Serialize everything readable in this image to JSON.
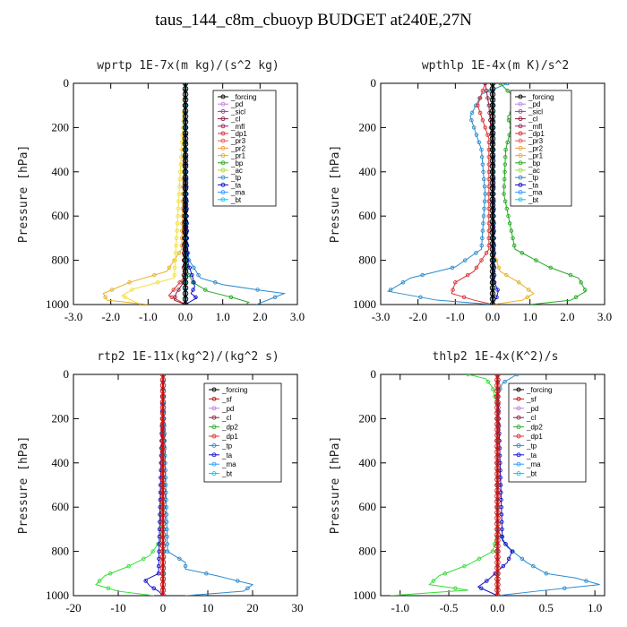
{
  "title": "taus_144_c8m_cbuoyp  BUDGET at240E,27N",
  "chart_data": [
    {
      "type": "line",
      "title": "wprtp  1E-7x(m kg)/(s^2 kg)",
      "ylabel": "Pressure [hPa]",
      "xlim": [
        -3.0,
        3.0
      ],
      "ylim": [
        0,
        1000
      ],
      "xticks": [
        "-3.0",
        "-2.0",
        "-1.0",
        "0.0",
        "1.0",
        "2.0",
        "3.0"
      ],
      "yticks": [
        "0",
        "200",
        "400",
        "600",
        "800",
        "1000"
      ],
      "legend": [
        "_forcing",
        "_pd",
        "_sicl",
        "_cl",
        "_mfl",
        "_dp1",
        "_pr3",
        "_pr2",
        "_pr1",
        "_bp",
        "_ac",
        "_tp",
        "_ta",
        "_ma",
        "_bt"
      ],
      "series": [
        {
          "name": "_bp",
          "color": "#22aa22",
          "x": [
            0,
            0,
            0.05,
            0.2,
            0.6,
            1.3,
            1.7,
            1.6
          ],
          "y": [
            0,
            750,
            850,
            900,
            940,
            970,
            990,
            1000
          ]
        },
        {
          "name": "_tp",
          "color": "#2a8bd0",
          "x": [
            0,
            0.02,
            0.1,
            0.4,
            1.0,
            2.0,
            2.65,
            1.9
          ],
          "y": [
            0,
            700,
            800,
            880,
            910,
            935,
            950,
            1000
          ]
        },
        {
          "name": "_ta",
          "color": "#1010cc",
          "x": [
            0,
            0.05,
            0.2,
            0.25,
            0.15,
            0.3,
            0
          ],
          "y": [
            0,
            800,
            880,
            920,
            950,
            970,
            1000
          ]
        },
        {
          "name": "_pr1",
          "color": "#e8b020",
          "x": [
            0,
            -0.1,
            -0.5,
            -1.5,
            -2.2,
            -2.1,
            -1.0
          ],
          "y": [
            0,
            750,
            850,
            900,
            950,
            980,
            1000
          ]
        },
        {
          "name": "_ac",
          "color": "#f0e040",
          "x": [
            0,
            -0.3,
            -1.4,
            -1.7,
            -1.2
          ],
          "y": [
            0,
            880,
            930,
            960,
            1000
          ]
        },
        {
          "name": "_dp1",
          "color": "#dd3333",
          "x": [
            0,
            -0.05,
            -0.35,
            -0.45,
            -0.2,
            0
          ],
          "y": [
            0,
            880,
            940,
            960,
            980,
            1000
          ]
        },
        {
          "name": "_cl",
          "color": "#8a2040",
          "x": [
            0,
            -0.05,
            -0.25,
            -0.3,
            0
          ],
          "y": [
            0,
            900,
            950,
            980,
            1000
          ]
        },
        {
          "name": "_bt",
          "color": "#00ccee",
          "x": [
            0,
            0,
            0
          ],
          "y": [
            0,
            500,
            1000
          ]
        },
        {
          "name": "_forcing",
          "color": "#000000",
          "x": [
            0,
            0,
            0
          ],
          "y": [
            0,
            500,
            1000
          ]
        }
      ]
    },
    {
      "type": "line",
      "title": "wpthlp  1E-4x(m K)/s^2",
      "ylabel": "Pressure [hPa]",
      "xlim": [
        -3.0,
        3.0
      ],
      "ylim": [
        0,
        1000
      ],
      "xticks": [
        "-3.0",
        "-2.0",
        "-1.0",
        "0.0",
        "1.0",
        "2.0",
        "3.0"
      ],
      "yticks": [
        "0",
        "200",
        "400",
        "600",
        "800",
        "1000"
      ],
      "legend": [
        "_forcing",
        "_pd",
        "_sicl",
        "_cl",
        "_mfl",
        "_dp1",
        "_pr3",
        "_pr2",
        "_pr1",
        "_bp",
        "_ac",
        "_tp",
        "_ta",
        "_ma",
        "_bt"
      ],
      "series": [
        {
          "name": "_bp",
          "color": "#22aa22",
          "x": [
            0.2,
            0.5,
            0.7,
            0.4,
            0.5,
            0.35,
            0.3,
            0.6,
            1.5,
            2.3,
            2.5,
            2.1,
            1.0
          ],
          "y": [
            0,
            50,
            100,
            150,
            200,
            300,
            500,
            750,
            830,
            880,
            940,
            980,
            1000
          ]
        },
        {
          "name": "_tp",
          "color": "#2a8bd0",
          "x": [
            0.4,
            -0.3,
            -0.6,
            -0.5,
            -0.3,
            -0.2,
            -0.3,
            -1.0,
            -2.2,
            -2.8,
            -1.5,
            0
          ],
          "y": [
            0,
            50,
            150,
            200,
            300,
            500,
            750,
            830,
            880,
            940,
            980,
            1000
          ]
        },
        {
          "name": "_dp1",
          "color": "#dd3333",
          "x": [
            -0.2,
            -0.4,
            -0.3,
            -0.1,
            -0.1,
            -0.5,
            -1.0,
            -1.1,
            -0.5,
            0
          ],
          "y": [
            0,
            100,
            150,
            250,
            750,
            850,
            900,
            950,
            980,
            1000
          ]
        },
        {
          "name": "_pr1",
          "color": "#e8b020",
          "x": [
            0,
            0,
            0.2,
            0.7,
            1.1,
            0.8,
            0
          ],
          "y": [
            0,
            750,
            850,
            900,
            950,
            980,
            1000
          ]
        },
        {
          "name": "_cl",
          "color": "#8a2040",
          "x": [
            -0.2,
            -0.1,
            0,
            0
          ],
          "y": [
            0,
            100,
            300,
            1000
          ]
        },
        {
          "name": "_ta",
          "color": "#1010cc",
          "x": [
            0,
            0.05,
            0.15,
            0.1,
            0
          ],
          "y": [
            0,
            900,
            940,
            970,
            1000
          ]
        },
        {
          "name": "_bt",
          "color": "#00ccee",
          "x": [
            0,
            0,
            0
          ],
          "y": [
            0,
            500,
            1000
          ]
        },
        {
          "name": "_forcing",
          "color": "#000000",
          "x": [
            0,
            0,
            0
          ],
          "y": [
            0,
            500,
            1000
          ]
        }
      ]
    },
    {
      "type": "line",
      "title": "rtp2  1E-11x(kg^2)/(kg^2 s)",
      "ylabel": "Pressure [hPa]",
      "xlim": [
        -20,
        30
      ],
      "ylim": [
        0,
        1000
      ],
      "xticks": [
        "-20",
        "-10",
        "0",
        "10",
        "20",
        "30"
      ],
      "yticks": [
        "0",
        "200",
        "400",
        "600",
        "800",
        "1000"
      ],
      "legend": [
        "_forcing",
        "_sf",
        "_pd",
        "_cl",
        "_dp2",
        "_dp1",
        "_tp",
        "_ta",
        "_ma",
        "_bt"
      ],
      "series": [
        {
          "name": "_dp1",
          "color": "#33dd33",
          "x": [
            0,
            -0.5,
            -3,
            -8,
            -13,
            -15,
            -10,
            -2
          ],
          "y": [
            0,
            750,
            820,
            870,
            910,
            950,
            980,
            1000
          ]
        },
        {
          "name": "_tp",
          "color": "#2a8bd0",
          "x": [
            0,
            1,
            5,
            5,
            12,
            20,
            18,
            5
          ],
          "y": [
            0,
            800,
            850,
            880,
            910,
            950,
            980,
            1000
          ]
        },
        {
          "name": "_ta",
          "color": "#1010cc",
          "x": [
            0,
            -1,
            -4,
            -3,
            -1,
            0
          ],
          "y": [
            0,
            900,
            930,
            955,
            980,
            1000
          ]
        },
        {
          "name": "_bt",
          "color": "#00ccee",
          "x": [
            0,
            0,
            0
          ],
          "y": [
            0,
            500,
            1000
          ]
        },
        {
          "name": "_forcing",
          "color": "#cc1111",
          "x": [
            0,
            0,
            0
          ],
          "y": [
            0,
            500,
            1000
          ]
        }
      ]
    },
    {
      "type": "line",
      "title": "thlp2  1E-4x(K^2)/s",
      "ylabel": "Pressure [hPa]",
      "xlim": [
        -1.2,
        1.1
      ],
      "ylim": [
        0,
        1000
      ],
      "xticks": [
        "-1.0",
        "-0.5",
        "0.0",
        "0.5",
        "1.0"
      ],
      "yticks": [
        "0",
        "200",
        "400",
        "600",
        "800",
        "1000"
      ],
      "legend": [
        "_forcing",
        "_sf",
        "_pd",
        "_cl",
        "_dp2",
        "_dp1",
        "_tp",
        "_ta",
        "_ma",
        "_bt"
      ],
      "series": [
        {
          "name": "_dp1",
          "color": "#33dd33",
          "x": [
            -0.3,
            -0.12,
            -0.05,
            0,
            0,
            -0.05,
            -0.3,
            -0.6,
            -0.7,
            -0.3,
            -1.1
          ],
          "y": [
            0,
            20,
            60,
            150,
            720,
            800,
            860,
            910,
            950,
            975,
            1000
          ]
        },
        {
          "name": "_tp",
          "color": "#2a8bd0",
          "x": [
            0.2,
            0.05,
            0,
            0,
            0.1,
            0.3,
            0.5,
            0.8,
            1.05,
            0.4,
            0
          ],
          "y": [
            0,
            40,
            100,
            700,
            780,
            850,
            900,
            920,
            950,
            980,
            1000
          ]
        },
        {
          "name": "_ta",
          "color": "#1010cc",
          "x": [
            0,
            0.05,
            0.15,
            0.1,
            -0.1,
            -0.2,
            0
          ],
          "y": [
            0,
            750,
            800,
            850,
            930,
            960,
            1000
          ]
        },
        {
          "name": "_bt",
          "color": "#00ccee",
          "x": [
            0,
            0,
            0
          ],
          "y": [
            0,
            500,
            1000
          ]
        },
        {
          "name": "_forcing",
          "color": "#cc1111",
          "x": [
            0,
            0,
            0
          ],
          "y": [
            0,
            500,
            1000
          ]
        }
      ]
    }
  ]
}
